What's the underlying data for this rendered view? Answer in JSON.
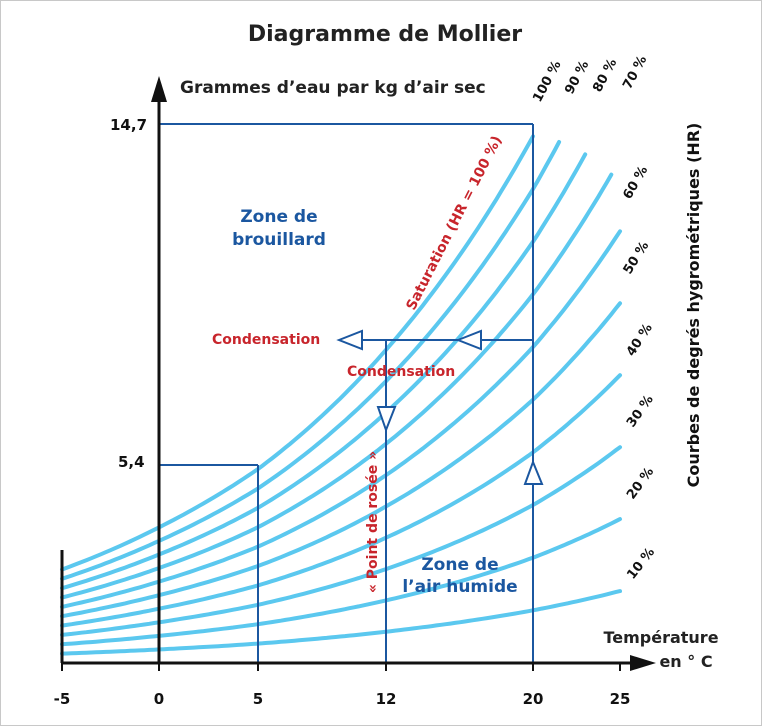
{
  "chart_data": {
    "type": "line",
    "title": "Diagramme de Mollier",
    "ylabel": "Grammes d’eau par kg d’air sec",
    "xlabel_line1": "Température",
    "xlabel_line2": "en ° C",
    "right_label": "Courbes de degrés hygrométriques (HR)",
    "x_ticks": [
      "-5",
      "0",
      "5",
      "12",
      "20",
      "25"
    ],
    "y_ticks": [
      "14,7",
      "5,4"
    ],
    "humidity_curves": [
      "100 %",
      "90 %",
      "80 %",
      "70 %",
      "60 %",
      "50 %",
      "40 %",
      "30 %",
      "20 %",
      "10 %"
    ],
    "humidity_values": [
      100,
      90,
      80,
      70,
      60,
      50,
      40,
      30,
      20,
      10
    ],
    "reference_points": [
      {
        "temperature": 20,
        "humidity_g_per_kg": 14.7
      },
      {
        "temperature": 5,
        "humidity_g_per_kg": 5.4
      }
    ],
    "annotations": {
      "zone_fog_line1": "Zone de",
      "zone_fog_line2": "brouillard",
      "zone_humid_line1": "Zone de",
      "zone_humid_line2": "l’air humide",
      "saturation": "Saturation (HR = 100 %)",
      "condensation_left": "Condensation",
      "condensation_mid": "Condensation",
      "dew_point": "« Point de rosée »"
    },
    "colors": {
      "curve": "#5bc8ef",
      "blue_line": "#1b57a0",
      "red_text": "#c8252c",
      "axis": "#111111"
    }
  }
}
